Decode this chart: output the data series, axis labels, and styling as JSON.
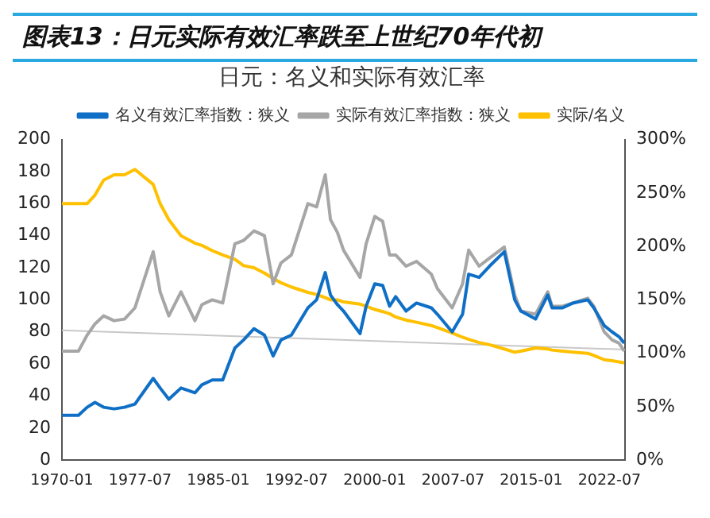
{
  "chart_data": {
    "type": "line",
    "title": "日元：名义和实际有效汇率",
    "annotations": [
      "图表13：日元实际有效汇率跌至上世纪70年代初"
    ],
    "x": [
      "1970-01",
      "1971-08",
      "1972-06",
      "1973-03",
      "1974-01",
      "1975-01",
      "1976-01",
      "1977-01",
      "1978-10",
      "1979-06",
      "1980-04",
      "1981-06",
      "1982-10",
      "1983-06",
      "1984-06",
      "1985-06",
      "1986-08",
      "1987-06",
      "1988-06",
      "1989-06",
      "1990-04",
      "1991-01",
      "1992-01",
      "1993-08",
      "1994-06",
      "1995-04",
      "1995-10",
      "1996-06",
      "1997-01",
      "1998-08",
      "1999-03",
      "2000-01",
      "2000-10",
      "2001-06",
      "2002-01",
      "2003-01",
      "2004-01",
      "2005-06",
      "2006-01",
      "2007-06",
      "2008-06",
      "2009-01",
      "2010-01",
      "2011-01",
      "2012-06",
      "2013-06",
      "2014-01",
      "2015-06",
      "2016-08",
      "2017-01",
      "2018-01",
      "2019-01",
      "2020-06",
      "2021-01",
      "2022-01",
      "2022-10",
      "2023-06",
      "2023-12"
    ],
    "series": [
      {
        "name": "名义有效汇率指数：狭义",
        "color": "#0f6fc6",
        "values": [
          28,
          28,
          33,
          36,
          33,
          32,
          33,
          35,
          51,
          45,
          38,
          45,
          42,
          47,
          50,
          50,
          70,
          75,
          82,
          78,
          65,
          75,
          78,
          95,
          100,
          117,
          103,
          97,
          93,
          79,
          96,
          110,
          109,
          96,
          102,
          93,
          98,
          95,
          91,
          80,
          91,
          116,
          114,
          121,
          130,
          100,
          93,
          88,
          103,
          95,
          95,
          98,
          100,
          95,
          84,
          80,
          77,
          73
        ]
      },
      {
        "name": "实际有效汇率指数：狭义",
        "color": "#a6a6a6",
        "values": [
          68,
          68,
          78,
          85,
          90,
          87,
          88,
          95,
          130,
          105,
          90,
          105,
          87,
          97,
          100,
          98,
          135,
          137,
          143,
          140,
          110,
          123,
          128,
          160,
          158,
          178,
          150,
          142,
          131,
          114,
          135,
          152,
          149,
          128,
          128,
          121,
          124,
          116,
          107,
          95,
          110,
          131,
          121,
          126,
          133,
          103,
          93,
          91,
          105,
          96,
          96,
          98,
          101,
          96,
          80,
          75,
          73,
          68
        ]
      },
      {
        "name": "实际/名义",
        "color": "#ffc000",
        "axis": "y2",
        "values": [
          240,
          240,
          240,
          248,
          262,
          267,
          267,
          272,
          258,
          240,
          225,
          210,
          203,
          201,
          196,
          192,
          188,
          182,
          180,
          175,
          170,
          166,
          162,
          157,
          155,
          152,
          150,
          150,
          148,
          146,
          144,
          141,
          139,
          137,
          134,
          131,
          129,
          126,
          124,
          119,
          115,
          113,
          110,
          108,
          104,
          101,
          102,
          105,
          104,
          103,
          102,
          101,
          100,
          98,
          94,
          93,
          92,
          91
        ]
      },
      {
        "type": "line",
        "color": "#c8c8c8",
        "x": [
          "1970-01",
          "2024-01"
        ],
        "values": [
          81,
          69
        ]
      }
    ],
    "xlim": [
      "1970-01",
      "2024-01"
    ],
    "xticks": [
      "1970-01",
      "1977-07",
      "1985-01",
      "1992-07",
      "2000-01",
      "2007-07",
      "2015-01",
      "2022-07"
    ],
    "ylim": [
      0,
      200
    ],
    "yticks": [
      0,
      20,
      40,
      60,
      80,
      100,
      120,
      140,
      160,
      180,
      200
    ],
    "y2lim": [
      0,
      300
    ],
    "y2ticks": [
      {
        "value": 0,
        "label": "0%"
      },
      {
        "value": 50,
        "label": "50%"
      },
      {
        "value": 100,
        "label": "100%"
      },
      {
        "value": 150,
        "label": "150%"
      },
      {
        "value": 200,
        "label": "200%"
      },
      {
        "value": 250,
        "label": "250%"
      },
      {
        "value": 300,
        "label": "300%"
      }
    ],
    "grid": false,
    "legend": "top",
    "marker": "none",
    "line_style": "solid"
  }
}
